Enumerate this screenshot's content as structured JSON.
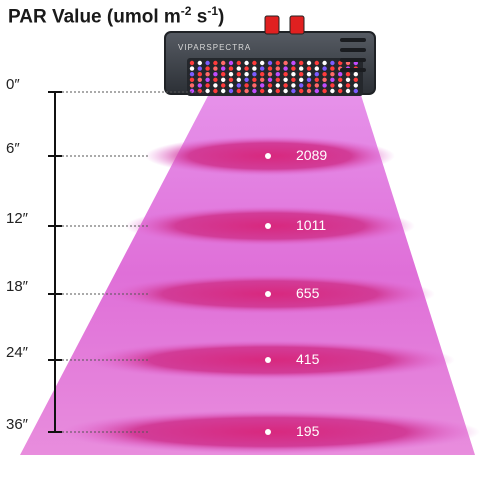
{
  "title": {
    "main": "PAR Value (umol m",
    "exp1": "-2",
    "mid": " s",
    "exp2": "-1",
    "close": ")"
  },
  "device": {
    "brand": "VIPARSPECTRA"
  },
  "colors": {
    "light": "#e070d8",
    "ring": "#d0308c",
    "frame": "#222222",
    "panel": "#3a3f47",
    "switch": "#e02020"
  },
  "chart_data": {
    "type": "scatter",
    "title": "PAR Value (umol m-2 s-1)",
    "y_unit": "inches",
    "ticks": [
      "0″",
      "6″",
      "12″",
      "18″",
      "24″",
      "36″"
    ],
    "distances": [
      0,
      6,
      12,
      18,
      24,
      36
    ],
    "points": [
      {
        "distance": 6,
        "label": "6″",
        "par": 2089,
        "par_text": "2089"
      },
      {
        "distance": 12,
        "label": "12″",
        "par": 1011,
        "par_text": "1011"
      },
      {
        "distance": 18,
        "label": "18″",
        "par": 655,
        "par_text": "655"
      },
      {
        "distance": 24,
        "label": "24″",
        "par": 415,
        "par_text": "415"
      },
      {
        "distance": 36,
        "label": "36″",
        "par": 195,
        "par_text": "195"
      }
    ]
  }
}
